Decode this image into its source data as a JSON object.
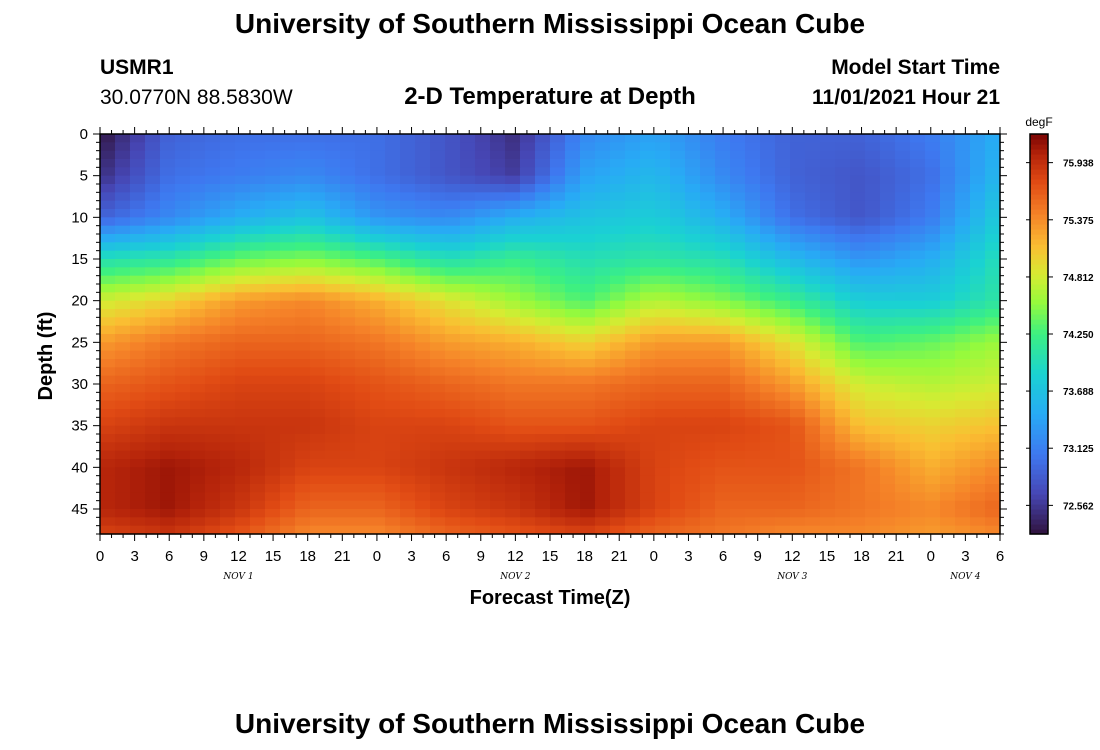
{
  "titles": {
    "main": "University of Southern Mississippi Ocean Cube",
    "repeat": "University of Southern Mississippi Ocean Cube"
  },
  "station": {
    "name": "USMR1",
    "coords": "30.0770N  88.5830W"
  },
  "model": {
    "label": "Model Start Time",
    "start": "11/01/2021 Hour 21"
  },
  "chart_data": {
    "type": "heatmap",
    "title": "2-D Temperature at Depth",
    "xlabel": "Forecast Time(Z)",
    "ylabel": "Depth (ft)",
    "colorbar_label": "degF",
    "colorbar_ticks": [
      "72.562",
      "73.125",
      "73.688",
      "74.250",
      "74.812",
      "75.375",
      "75.938"
    ],
    "color_range": [
      72.28,
      76.22
    ],
    "x_tick_labels": [
      "0",
      "3",
      "6",
      "9",
      "12",
      "15",
      "18",
      "21",
      "0",
      "3",
      "6",
      "9",
      "12",
      "15",
      "18",
      "21",
      "0",
      "3",
      "6",
      "9",
      "12",
      "15",
      "18",
      "21",
      "0",
      "3",
      "6"
    ],
    "x_range_hours": [
      0,
      78
    ],
    "day_labels": [
      {
        "label": "NOV 1",
        "hour": 12
      },
      {
        "label": "NOV 2",
        "hour": 36
      },
      {
        "label": "NOV 3",
        "hour": 60
      },
      {
        "label": "NOV 4",
        "hour": 75
      }
    ],
    "y_ticks": [
      0,
      5,
      10,
      15,
      20,
      25,
      30,
      35,
      40,
      45
    ],
    "y_range_ft": [
      0,
      48
    ],
    "hours": [
      0,
      6,
      12,
      18,
      24,
      30,
      36,
      42,
      48,
      54,
      60,
      66,
      72,
      78
    ],
    "depths": [
      0,
      5,
      10,
      15,
      20,
      25,
      30,
      35,
      40,
      45,
      48
    ],
    "temps": [
      [
        72.3,
        72.9,
        73.0,
        73.0,
        73.0,
        72.8,
        72.5,
        73.2,
        73.4,
        73.1,
        72.9,
        72.9,
        73.1,
        73.5
      ],
      [
        72.5,
        73.0,
        73.1,
        73.2,
        73.0,
        72.8,
        72.6,
        73.4,
        73.6,
        73.2,
        72.9,
        72.8,
        73.0,
        73.6
      ],
      [
        72.9,
        73.2,
        73.5,
        73.7,
        73.3,
        73.2,
        73.5,
        73.7,
        73.8,
        73.5,
        73.0,
        72.8,
        73.1,
        73.8
      ],
      [
        74.0,
        74.1,
        74.4,
        74.5,
        74.3,
        74.0,
        74.2,
        74.0,
        74.1,
        74.0,
        73.6,
        73.3,
        73.5,
        74.0
      ],
      [
        74.8,
        75.0,
        75.3,
        75.4,
        75.2,
        74.9,
        74.6,
        74.3,
        74.7,
        74.5,
        74.2,
        73.8,
        73.8,
        74.1
      ],
      [
        75.3,
        75.5,
        75.6,
        75.6,
        75.5,
        75.3,
        75.2,
        75.0,
        75.3,
        75.3,
        74.9,
        74.3,
        74.4,
        74.6
      ],
      [
        75.6,
        75.7,
        75.8,
        75.8,
        75.7,
        75.6,
        75.5,
        75.5,
        75.6,
        75.6,
        75.3,
        74.8,
        74.7,
        74.8
      ],
      [
        75.8,
        75.9,
        75.9,
        75.9,
        75.8,
        75.8,
        75.7,
        75.7,
        75.8,
        75.8,
        75.7,
        75.1,
        75.0,
        75.1
      ],
      [
        76.0,
        76.1,
        76.0,
        75.8,
        75.8,
        75.9,
        76.0,
        76.1,
        75.8,
        75.7,
        75.7,
        75.5,
        75.2,
        75.4
      ],
      [
        76.0,
        76.1,
        75.9,
        75.6,
        75.6,
        75.8,
        75.9,
        76.1,
        75.8,
        75.6,
        75.6,
        75.5,
        75.4,
        75.6
      ],
      [
        75.8,
        75.9,
        75.7,
        75.4,
        75.4,
        75.6,
        75.7,
        75.8,
        75.6,
        75.5,
        75.4,
        75.4,
        75.3,
        75.4
      ]
    ]
  }
}
